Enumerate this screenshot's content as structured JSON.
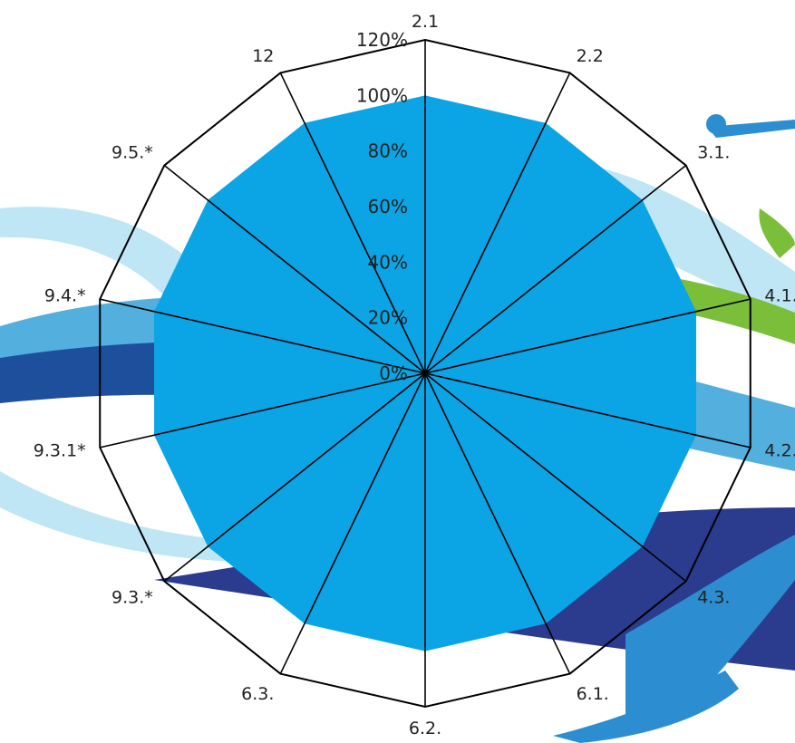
{
  "colors": {
    "fill": "#0BA5E6",
    "grid_stroke": "#000000",
    "bg_light_blue": "#BFE6F5",
    "bg_mid_blue": "#3FA6DA",
    "bg_dark_blue": "#1E4F9C",
    "bg_navy": "#2B3B8E",
    "bg_green": "#7BBE3A",
    "bg_bright_blue": "#2C8ED0"
  },
  "chart_data": {
    "type": "radar",
    "categories": [
      "2.1",
      "2.2",
      "3.1.",
      "4.1.",
      "4.2.",
      "4.3.",
      "6.1.",
      "6.2.",
      "6.3.",
      "9.3.*",
      "9.3.1*",
      "9.4.*",
      "9.5.*",
      "12"
    ],
    "values": [
      100,
      100,
      100,
      100,
      100,
      100,
      100,
      100,
      100,
      100,
      100,
      100,
      100,
      100
    ],
    "r_ticks": [
      {
        "value": 0,
        "label": "0%"
      },
      {
        "value": 20,
        "label": "20%"
      },
      {
        "value": 40,
        "label": "40%"
      },
      {
        "value": 60,
        "label": "60%"
      },
      {
        "value": 80,
        "label": "80%"
      },
      {
        "value": 100,
        "label": "100%"
      },
      {
        "value": 120,
        "label": "120%"
      }
    ],
    "rlim": [
      0,
      120
    ],
    "fill_color": "#0BA5E6",
    "legend": "none"
  }
}
